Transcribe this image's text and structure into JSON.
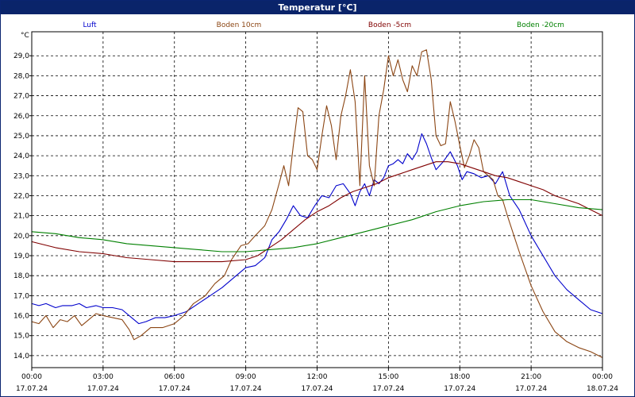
{
  "window": {
    "title": "Temperatur [°C]"
  },
  "chart_data": {
    "type": "line",
    "title": "Temperatur [°C]",
    "ylabel": "°C",
    "xlabel": "",
    "ylim": [
      13.4,
      30.2
    ],
    "xlim": [
      0,
      24
    ],
    "grid": true,
    "legend": "top",
    "y_ticks": [
      14,
      15,
      16,
      17,
      18,
      19,
      20,
      21,
      22,
      23,
      24,
      25,
      26,
      27,
      28,
      29
    ],
    "y_tick_labels": [
      "14,0",
      "15,0",
      "16,0",
      "17,0",
      "18,0",
      "19,0",
      "20,0",
      "21,0",
      "22,0",
      "23,0",
      "24,0",
      "25,0",
      "26,0",
      "27,0",
      "28,0",
      "29,0"
    ],
    "x_ticks": [
      0,
      3,
      6,
      9,
      12,
      15,
      18,
      21,
      24
    ],
    "x_tick_times": [
      "00:00",
      "03:00",
      "06:00",
      "09:00",
      "12:00",
      "15:00",
      "18:00",
      "21:00",
      "00:00"
    ],
    "x_tick_dates": [
      "17.07.24",
      "17.07.24",
      "17.07.24",
      "17.07.24",
      "17.07.24",
      "17.07.24",
      "17.07.24",
      "17.07.24",
      "18.07.24"
    ],
    "series": [
      {
        "name": "Luft",
        "color": "#0000cc",
        "points": [
          [
            0,
            16.6
          ],
          [
            0.3,
            16.5
          ],
          [
            0.6,
            16.6
          ],
          [
            1,
            16.4
          ],
          [
            1.3,
            16.5
          ],
          [
            1.7,
            16.5
          ],
          [
            2,
            16.6
          ],
          [
            2.3,
            16.4
          ],
          [
            2.7,
            16.5
          ],
          [
            3,
            16.4
          ],
          [
            3.4,
            16.4
          ],
          [
            3.8,
            16.3
          ],
          [
            4.2,
            15.9
          ],
          [
            4.5,
            15.6
          ],
          [
            4.8,
            15.7
          ],
          [
            5.2,
            15.9
          ],
          [
            5.6,
            15.9
          ],
          [
            6,
            16.0
          ],
          [
            6.5,
            16.2
          ],
          [
            7,
            16.6
          ],
          [
            7.5,
            17.0
          ],
          [
            8,
            17.4
          ],
          [
            8.5,
            17.9
          ],
          [
            9,
            18.4
          ],
          [
            9.4,
            18.5
          ],
          [
            9.8,
            18.9
          ],
          [
            10.1,
            19.8
          ],
          [
            10.4,
            20.2
          ],
          [
            10.7,
            20.8
          ],
          [
            11,
            21.5
          ],
          [
            11.3,
            21.0
          ],
          [
            11.6,
            20.9
          ],
          [
            11.9,
            21.5
          ],
          [
            12.2,
            22.0
          ],
          [
            12.5,
            21.9
          ],
          [
            12.8,
            22.5
          ],
          [
            13.1,
            22.6
          ],
          [
            13.4,
            22.1
          ],
          [
            13.6,
            21.5
          ],
          [
            13.8,
            22.2
          ],
          [
            14,
            22.6
          ],
          [
            14.2,
            22.0
          ],
          [
            14.4,
            22.8
          ],
          [
            14.6,
            22.6
          ],
          [
            14.8,
            22.9
          ],
          [
            15,
            23.5
          ],
          [
            15.2,
            23.6
          ],
          [
            15.4,
            23.8
          ],
          [
            15.6,
            23.6
          ],
          [
            15.8,
            24.1
          ],
          [
            16,
            23.8
          ],
          [
            16.2,
            24.2
          ],
          [
            16.4,
            25.1
          ],
          [
            16.6,
            24.6
          ],
          [
            16.8,
            23.9
          ],
          [
            17,
            23.3
          ],
          [
            17.3,
            23.7
          ],
          [
            17.6,
            24.2
          ],
          [
            17.9,
            23.5
          ],
          [
            18.1,
            22.8
          ],
          [
            18.3,
            23.2
          ],
          [
            18.6,
            23.1
          ],
          [
            18.9,
            22.9
          ],
          [
            19.2,
            23.0
          ],
          [
            19.5,
            22.6
          ],
          [
            19.8,
            23.2
          ],
          [
            20.1,
            22.0
          ],
          [
            20.5,
            21.3
          ],
          [
            21,
            20.0
          ],
          [
            21.5,
            19.0
          ],
          [
            22,
            18.0
          ],
          [
            22.5,
            17.3
          ],
          [
            23,
            16.8
          ],
          [
            23.5,
            16.3
          ],
          [
            24,
            16.1
          ]
        ]
      },
      {
        "name": "Boden 10cm",
        "color": "#8b4513",
        "points": [
          [
            0,
            15.7
          ],
          [
            0.3,
            15.6
          ],
          [
            0.6,
            16.0
          ],
          [
            0.9,
            15.4
          ],
          [
            1.2,
            15.8
          ],
          [
            1.5,
            15.7
          ],
          [
            1.8,
            16.0
          ],
          [
            2.1,
            15.5
          ],
          [
            2.4,
            15.8
          ],
          [
            2.7,
            16.1
          ],
          [
            3,
            16.0
          ],
          [
            3.4,
            15.9
          ],
          [
            3.8,
            15.8
          ],
          [
            4.1,
            15.3
          ],
          [
            4.3,
            14.8
          ],
          [
            4.6,
            15.0
          ],
          [
            5,
            15.4
          ],
          [
            5.5,
            15.4
          ],
          [
            6,
            15.6
          ],
          [
            6.4,
            16.0
          ],
          [
            6.8,
            16.6
          ],
          [
            7.3,
            17.0
          ],
          [
            7.7,
            17.6
          ],
          [
            8.1,
            18.0
          ],
          [
            8.4,
            18.8
          ],
          [
            8.8,
            19.5
          ],
          [
            9.1,
            19.6
          ],
          [
            9.4,
            20.0
          ],
          [
            9.8,
            20.5
          ],
          [
            10.1,
            21.3
          ],
          [
            10.4,
            22.6
          ],
          [
            10.6,
            23.5
          ],
          [
            10.8,
            22.5
          ],
          [
            11,
            24.5
          ],
          [
            11.2,
            26.4
          ],
          [
            11.4,
            26.2
          ],
          [
            11.6,
            24.0
          ],
          [
            11.8,
            23.8
          ],
          [
            12,
            23.3
          ],
          [
            12.2,
            25.0
          ],
          [
            12.4,
            26.5
          ],
          [
            12.6,
            25.5
          ],
          [
            12.8,
            23.8
          ],
          [
            13,
            26.0
          ],
          [
            13.2,
            27.0
          ],
          [
            13.4,
            28.3
          ],
          [
            13.6,
            26.7
          ],
          [
            13.8,
            22.5
          ],
          [
            14,
            28.0
          ],
          [
            14.2,
            23.5
          ],
          [
            14.4,
            22.5
          ],
          [
            14.6,
            26.0
          ],
          [
            14.8,
            27.3
          ],
          [
            15,
            29.0
          ],
          [
            15.2,
            28.0
          ],
          [
            15.4,
            28.8
          ],
          [
            15.6,
            27.8
          ],
          [
            15.8,
            27.2
          ],
          [
            16,
            28.5
          ],
          [
            16.2,
            28.0
          ],
          [
            16.4,
            29.2
          ],
          [
            16.6,
            29.3
          ],
          [
            16.8,
            27.8
          ],
          [
            17,
            25.0
          ],
          [
            17.2,
            24.5
          ],
          [
            17.4,
            24.6
          ],
          [
            17.6,
            26.7
          ],
          [
            17.8,
            25.7
          ],
          [
            18,
            24.5
          ],
          [
            18.2,
            23.4
          ],
          [
            18.4,
            24.0
          ],
          [
            18.6,
            24.8
          ],
          [
            18.8,
            24.4
          ],
          [
            19,
            23.2
          ],
          [
            19.2,
            23.0
          ],
          [
            19.4,
            22.8
          ],
          [
            19.6,
            22.0
          ],
          [
            19.8,
            21.8
          ],
          [
            20,
            21.0
          ],
          [
            20.5,
            19.2
          ],
          [
            21,
            17.5
          ],
          [
            21.5,
            16.2
          ],
          [
            22,
            15.2
          ],
          [
            22.5,
            14.7
          ],
          [
            23,
            14.4
          ],
          [
            23.5,
            14.2
          ],
          [
            24,
            13.9
          ]
        ]
      },
      {
        "name": "Boden -5cm",
        "color": "#800000",
        "points": [
          [
            0,
            19.7
          ],
          [
            1,
            19.4
          ],
          [
            2,
            19.2
          ],
          [
            3,
            19.1
          ],
          [
            4,
            18.9
          ],
          [
            5,
            18.8
          ],
          [
            6,
            18.7
          ],
          [
            7,
            18.7
          ],
          [
            8,
            18.7
          ],
          [
            9,
            18.8
          ],
          [
            9.5,
            19.0
          ],
          [
            10,
            19.4
          ],
          [
            10.5,
            19.8
          ],
          [
            11,
            20.3
          ],
          [
            11.5,
            20.8
          ],
          [
            12,
            21.2
          ],
          [
            12.5,
            21.5
          ],
          [
            13,
            21.9
          ],
          [
            13.5,
            22.2
          ],
          [
            14,
            22.4
          ],
          [
            14.5,
            22.6
          ],
          [
            15,
            22.9
          ],
          [
            15.5,
            23.1
          ],
          [
            16,
            23.3
          ],
          [
            16.5,
            23.5
          ],
          [
            17,
            23.7
          ],
          [
            17.5,
            23.7
          ],
          [
            18,
            23.6
          ],
          [
            18.5,
            23.4
          ],
          [
            19,
            23.2
          ],
          [
            19.5,
            23.0
          ],
          [
            20,
            22.9
          ],
          [
            20.5,
            22.7
          ],
          [
            21,
            22.5
          ],
          [
            21.5,
            22.3
          ],
          [
            22,
            22.0
          ],
          [
            22.5,
            21.8
          ],
          [
            23,
            21.6
          ],
          [
            23.5,
            21.3
          ],
          [
            24,
            21.0
          ]
        ]
      },
      {
        "name": "Boden -20cm",
        "color": "#008000",
        "points": [
          [
            0,
            20.2
          ],
          [
            1,
            20.1
          ],
          [
            2,
            19.9
          ],
          [
            3,
            19.8
          ],
          [
            4,
            19.6
          ],
          [
            5,
            19.5
          ],
          [
            6,
            19.4
          ],
          [
            7,
            19.3
          ],
          [
            8,
            19.2
          ],
          [
            9,
            19.2
          ],
          [
            10,
            19.3
          ],
          [
            11,
            19.4
          ],
          [
            12,
            19.6
          ],
          [
            13,
            19.9
          ],
          [
            14,
            20.2
          ],
          [
            15,
            20.5
          ],
          [
            16,
            20.8
          ],
          [
            17,
            21.2
          ],
          [
            18,
            21.5
          ],
          [
            19,
            21.7
          ],
          [
            20,
            21.8
          ],
          [
            21,
            21.8
          ],
          [
            22,
            21.6
          ],
          [
            23,
            21.4
          ],
          [
            24,
            21.3
          ]
        ]
      }
    ]
  }
}
